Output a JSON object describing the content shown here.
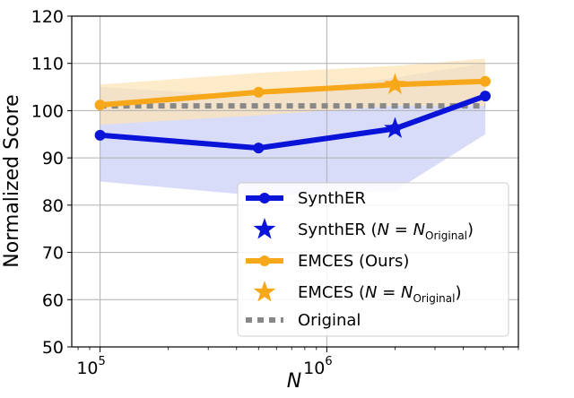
{
  "chart_data": {
    "type": "line",
    "xscale": "log",
    "xlim": [
      75000,
      7000000
    ],
    "ylim": [
      50,
      120
    ],
    "xlabel": "N",
    "ylabel": "Normalized Score",
    "grid": true,
    "legend_position": "lower-right",
    "x_ticks": [
      {
        "value": 100000,
        "base": "10",
        "exp": "5"
      },
      {
        "value": 1000000,
        "base": "10",
        "exp": "6"
      }
    ],
    "y_ticks": [
      "50",
      "60",
      "70",
      "80",
      "90",
      "100",
      "110",
      "120"
    ],
    "colors": {
      "synther": "#0a14d8",
      "synther_band": "#c9cdf6",
      "emces": "#f7a81a",
      "emces_band": "#fde3b3",
      "original": "#888888",
      "grid": "#b0b0b0"
    },
    "series": [
      {
        "key": "synther",
        "name": "SynthER",
        "x": [
          100000,
          500000,
          2000000,
          5000000
        ],
        "y": [
          94.8,
          92.1,
          96.2,
          103.1
        ],
        "band_low": [
          85.0,
          82.0,
          83.0,
          95.0
        ],
        "band_high": [
          105.0,
          103.0,
          107.0,
          110.0
        ]
      },
      {
        "key": "emces",
        "name": "EMCES (Ours)",
        "x": [
          100000,
          500000,
          2000000,
          5000000
        ],
        "y": [
          101.2,
          103.9,
          105.5,
          106.2
        ],
        "band_low": [
          97.0,
          99.0,
          101.0,
          101.0
        ],
        "band_high": [
          105.5,
          108.0,
          109.5,
          111.0
        ]
      }
    ],
    "stars": [
      {
        "key": "synther",
        "x": 2000000,
        "y": 96.2
      },
      {
        "key": "emces",
        "x": 2000000,
        "y": 105.5
      }
    ],
    "original": {
      "name": "Original",
      "y": 101.0
    },
    "legend": [
      {
        "key": "synther_line",
        "text": "SynthER",
        "sub": ""
      },
      {
        "key": "synther_star",
        "text": "SynthER (N = N",
        "sub": "Original",
        "close": ")"
      },
      {
        "key": "emces_line",
        "text": "EMCES (Ours)",
        "sub": ""
      },
      {
        "key": "emces_star",
        "text": "EMCES (N = N",
        "sub": "Original",
        "close": ")"
      },
      {
        "key": "original",
        "text": "Original",
        "sub": ""
      }
    ]
  }
}
